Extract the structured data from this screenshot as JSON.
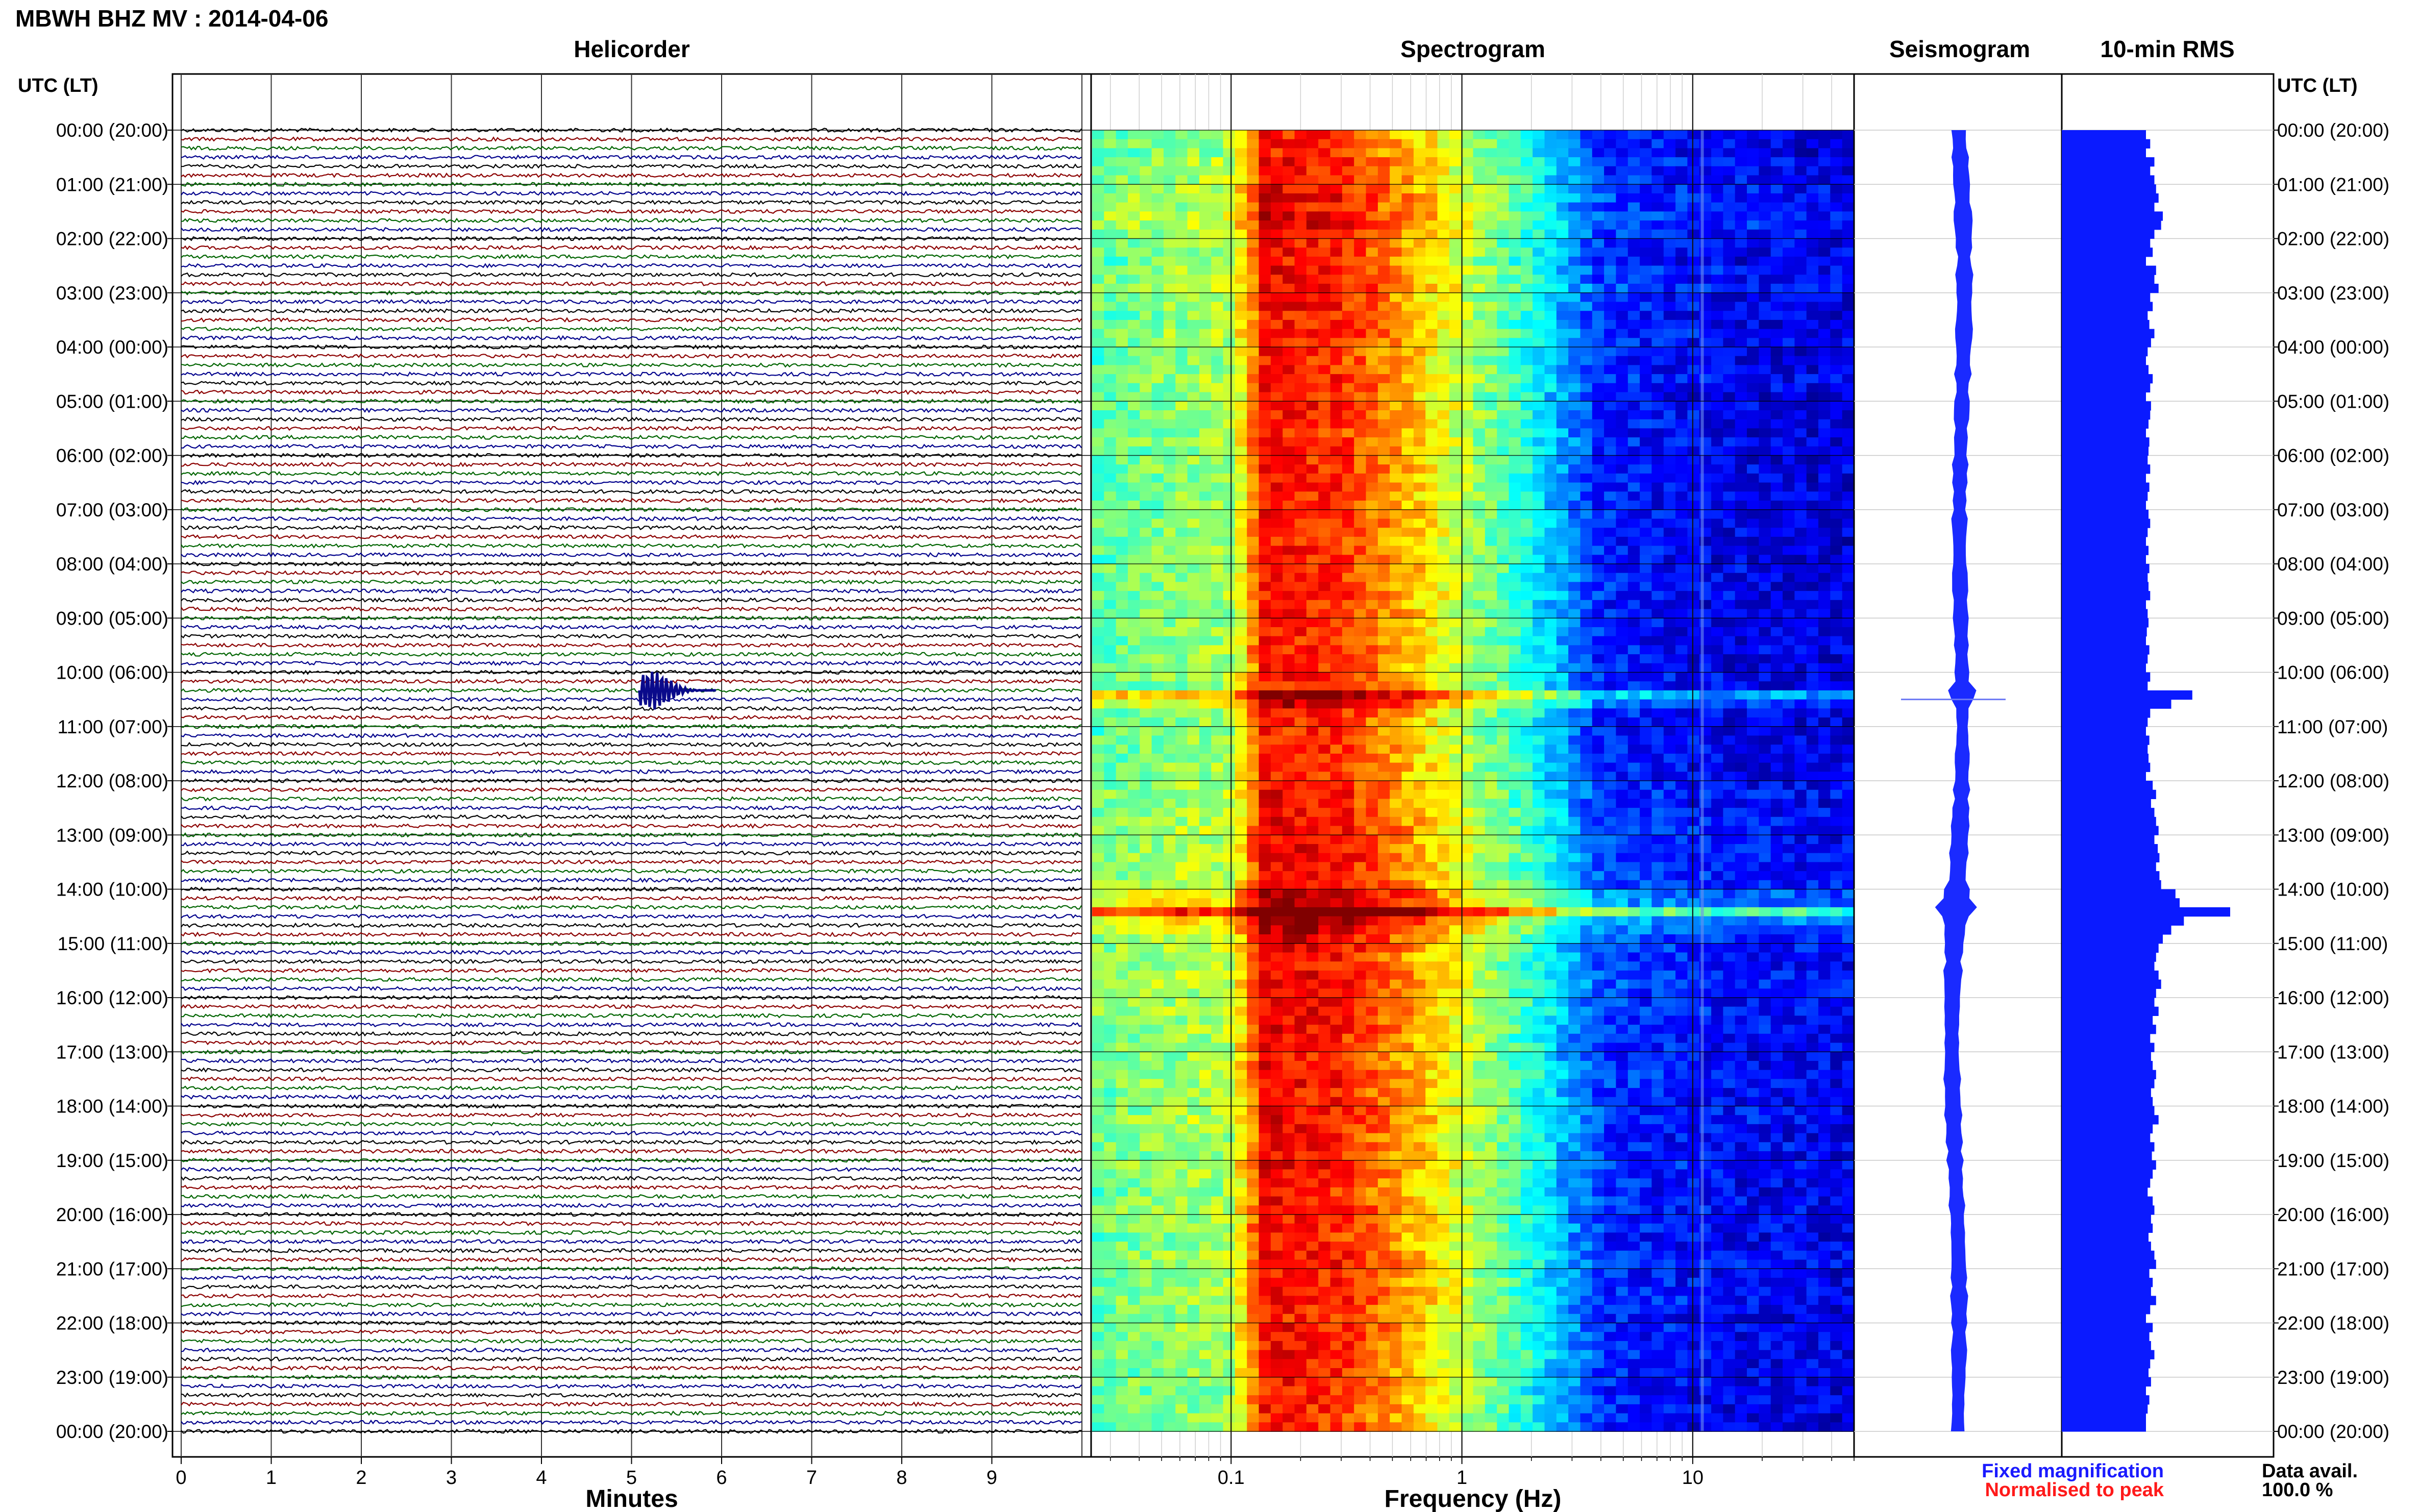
{
  "header": {
    "title": "MBWH BHZ MV : 2014-04-06"
  },
  "panels": {
    "helicorder": "Helicorder",
    "spectrogram": "Spectrogram",
    "seismogram": "Seismogram",
    "rms": "10-min RMS"
  },
  "axis": {
    "utc_label_left": "UTC (LT)",
    "utc_label_right": "UTC (LT)",
    "minutes_label": "Minutes",
    "frequency_label": "Frequency (Hz)"
  },
  "footer": {
    "fixed_magnification": "Fixed magnification",
    "normalised_to_peak": "Normalised to peak",
    "data_avail_label": "Data avail.",
    "data_avail_value": "100.0 %"
  },
  "colors": {
    "trace_cycle": [
      "#000000",
      "#8b0000",
      "#006400",
      "#00008b"
    ],
    "fixed_magnification": "#1a1aff",
    "normalised_to_peak": "#ff1a1a",
    "rms_fill": "#0a1aff",
    "seis_fill": "#1a2aff"
  },
  "chart_data": {
    "type": "heatmap",
    "time_rows": [
      "00:00 (20:00)",
      "01:00 (21:00)",
      "02:00 (22:00)",
      "03:00 (23:00)",
      "04:00 (00:00)",
      "05:00 (01:00)",
      "06:00 (02:00)",
      "07:00 (03:00)",
      "08:00 (04:00)",
      "09:00 (05:00)",
      "10:00 (06:00)",
      "11:00 (07:00)",
      "12:00 (08:00)",
      "13:00 (09:00)",
      "14:00 (10:00)",
      "15:00 (11:00)",
      "16:00 (12:00)",
      "17:00 (13:00)",
      "18:00 (14:00)",
      "19:00 (15:00)",
      "20:00 (16:00)",
      "21:00 (17:00)",
      "22:00 (18:00)",
      "23:00 (19:00)",
      "00:00 (20:00)"
    ],
    "minutes_ticks": [
      "0",
      "1",
      "2",
      "3",
      "4",
      "5",
      "6",
      "7",
      "8",
      "9"
    ],
    "minutes_range": [
      0,
      10
    ],
    "frequency_ticks": [
      "0.1",
      "1",
      "10"
    ],
    "frequency_range": [
      0.025,
      50
    ],
    "frequency_scale": "log",
    "helicorder_traces": 144,
    "helicorder_event": {
      "hour": 10,
      "minute": 5.2
    },
    "spectrum_profile": [
      {
        "f": 0.025,
        "level": 0.45
      },
      {
        "f": 0.06,
        "level": 0.5
      },
      {
        "f": 0.1,
        "level": 0.52
      },
      {
        "f": 0.14,
        "level": 0.85
      },
      {
        "f": 0.3,
        "level": 0.82
      },
      {
        "f": 0.6,
        "level": 0.68
      },
      {
        "f": 1.0,
        "level": 0.55
      },
      {
        "f": 2.0,
        "level": 0.38
      },
      {
        "f": 4.0,
        "level": 0.15
      },
      {
        "f": 12.0,
        "level": 0.1
      },
      {
        "f": 50.0,
        "level": 0.08
      }
    ],
    "rms_10min": [
      1.0,
      1.05,
      1.0,
      1.1,
      1.05,
      1.1,
      1.12,
      1.15,
      1.1,
      1.2,
      1.18,
      1.1,
      1.05,
      1.08,
      1.0,
      1.12,
      1.1,
      1.15,
      1.05,
      1.08,
      1.02,
      1.04,
      1.1,
      1.06,
      1.02,
      1.0,
      1.03,
      1.08,
      1.05,
      1.0,
      1.06,
      1.05,
      1.03,
      1.0,
      1.04,
      1.03,
      1.02,
      1.05,
      1.0,
      1.04,
      1.02,
      1.0,
      1.03,
      1.05,
      1.02,
      1.0,
      1.03,
      1.0,
      1.04,
      1.02,
      1.03,
      1.05,
      1.0,
      1.02,
      1.03,
      1.01,
      1.0,
      1.04,
      1.02,
      1.0,
      1.05,
      1.02,
      1.55,
      1.3,
      1.05,
      1.02,
      1.0,
      1.04,
      1.02,
      1.03,
      1.05,
      1.0,
      1.08,
      1.12,
      1.06,
      1.1,
      1.12,
      1.15,
      1.1,
      1.14,
      1.16,
      1.12,
      1.16,
      1.18,
      1.35,
      1.4,
      2.0,
      1.45,
      1.3,
      1.2,
      1.15,
      1.12,
      1.1,
      1.15,
      1.18,
      1.12,
      1.1,
      1.15,
      1.08,
      1.12,
      1.05,
      1.1,
      1.06,
      1.08,
      1.12,
      1.1,
      1.06,
      1.08,
      1.1,
      1.15,
      1.08,
      1.05,
      1.1,
      1.07,
      1.12,
      1.08,
      1.05,
      1.02,
      1.08,
      1.1,
      1.06,
      1.08,
      1.03,
      1.06,
      1.1,
      1.12,
      1.04,
      1.08,
      1.06,
      1.12,
      1.05,
      1.0,
      1.08,
      1.04,
      1.06,
      1.1,
      1.05,
      1.03,
      1.06,
      1.0,
      1.04,
      1.02,
      1.0,
      1.0
    ]
  }
}
